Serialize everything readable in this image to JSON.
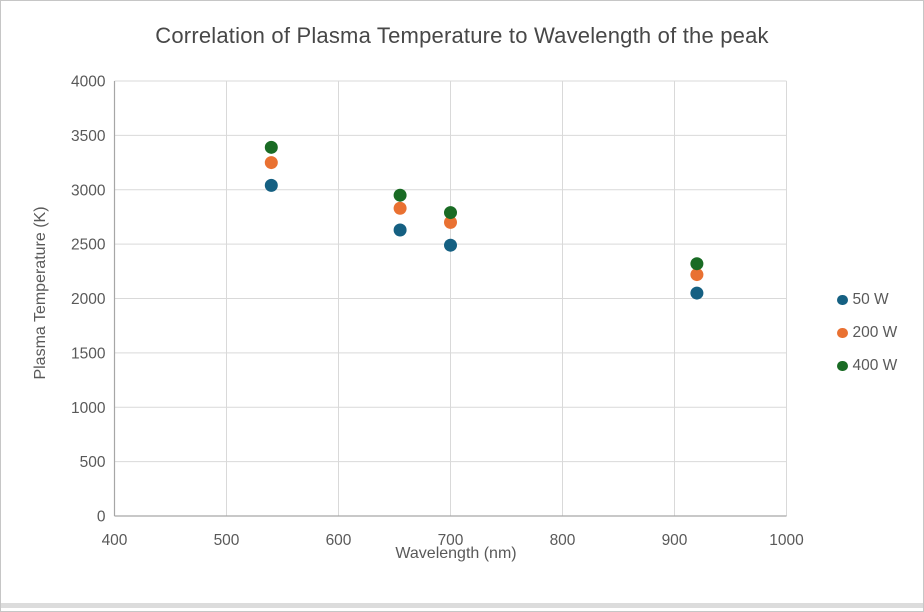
{
  "window": {
    "background": "#FFFFFF",
    "border_color": "#C6C6C6",
    "bottom_edge_color": "#DCDCDC"
  },
  "chart_data": {
    "type": "scatter",
    "title": "Correlation of Plasma Temperature to Wavelength of the peak",
    "xlabel": "Wavelength (nm)",
    "ylabel": "Plasma Temperature (K)",
    "xlim": [
      400,
      1000
    ],
    "ylim": [
      0,
      4000
    ],
    "x_ticks": [
      400,
      500,
      600,
      700,
      800,
      900,
      1000
    ],
    "y_ticks": [
      0,
      500,
      1000,
      1500,
      2000,
      2500,
      3000,
      3500,
      4000
    ],
    "grid": true,
    "legend_position": "right",
    "x": [
      540,
      655,
      700,
      920
    ],
    "series": [
      {
        "name": "50 W",
        "color": "#156082",
        "values": [
          3040,
          2630,
          2490,
          2050
        ]
      },
      {
        "name": "200 W",
        "color": "#E97132",
        "values": [
          3250,
          2830,
          2700,
          2220
        ]
      },
      {
        "name": "400 W",
        "color": "#196B24",
        "values": [
          3390,
          2950,
          2790,
          2320
        ]
      }
    ],
    "colors": {
      "gridline": "#D9D9D9",
      "axis_line": "#A6A6A6",
      "tick_text": "#595959",
      "title_text": "#474747"
    }
  }
}
